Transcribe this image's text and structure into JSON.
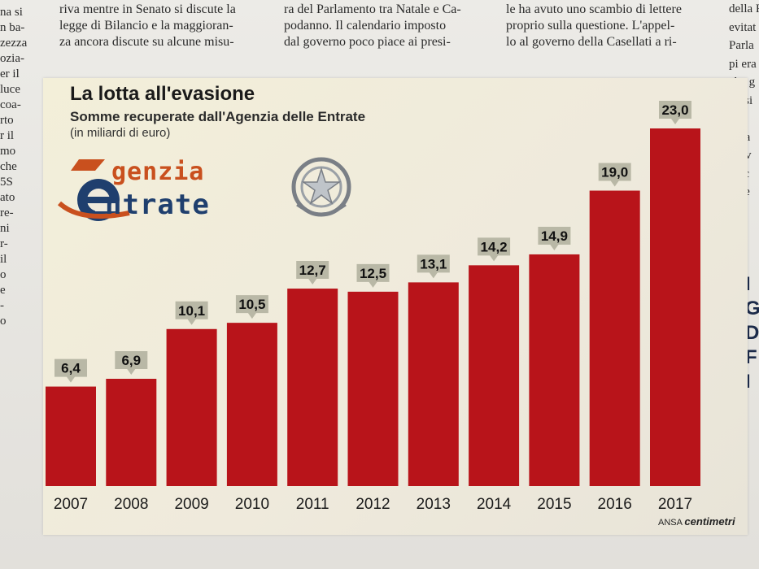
{
  "newspaper": {
    "top_columns": [
      {
        "left": 73,
        "lines": [
          "riva mentre in Senato si discute la",
          "legge di Bilancio e la maggioran-",
          "za ancora discute su alcune misu-"
        ]
      },
      {
        "left": 349,
        "lines": [
          "ra del Parlamento tra Natale e Ca-",
          "podanno. Il calendario imposto",
          "dal governo poco piace ai presi-"
        ]
      },
      {
        "left": 622,
        "lines": [
          "le ha avuto uno scambio di lettere",
          "proprio sulla questione. L'appel-",
          "lo al governo della Casellati a ri-"
        ]
      }
    ],
    "left_column": [
      "na si",
      "n ba-",
      "zezza",
      "ozia-",
      "er il",
      "luce",
      "coa-",
      "rto",
      "r il",
      "mo",
      "che",
      "5S",
      "ato",
      "re-",
      "ni",
      "r-",
      "il",
      "o",
      "e",
      "-",
      "o"
    ],
    "right_column": [
      "della F",
      "evitat",
      "Parla",
      "pi era",
      "che g",
      "presi",
      "rare",
      "si sa",
      "prov",
      "mec",
      "dive",
      "te e",
      "riu",
      "te c"
    ],
    "right_big_letters": [
      "I",
      "G",
      "D",
      "F",
      "I"
    ]
  },
  "chart_data": {
    "type": "bar",
    "title": "La lotta all'evasione",
    "subtitle": "Somme recuperate dall'Agenzia delle Entrate",
    "unit_note": "(in miliardi di euro)",
    "categories": [
      "2007",
      "2008",
      "2009",
      "2010",
      "2011",
      "2012",
      "2013",
      "2014",
      "2015",
      "2016",
      "2017"
    ],
    "values": [
      6.4,
      6.9,
      10.1,
      10.5,
      12.7,
      12.5,
      13.1,
      14.2,
      14.9,
      19.0,
      23.0
    ],
    "value_labels": [
      "6,4",
      "6,9",
      "10,1",
      "10,5",
      "12,7",
      "12,5",
      "13,1",
      "14,2",
      "14,9",
      "19,0",
      "23,0"
    ],
    "ylim": [
      0,
      23.0
    ],
    "bar_color": "#b8141a",
    "label_bg_color": "#b9b8a6",
    "grid": false,
    "legend": "none"
  },
  "logo": {
    "line1": "genzia",
    "line2": "ntrate"
  },
  "source": {
    "prefix": "ANSA",
    "brand": "centimetri"
  }
}
